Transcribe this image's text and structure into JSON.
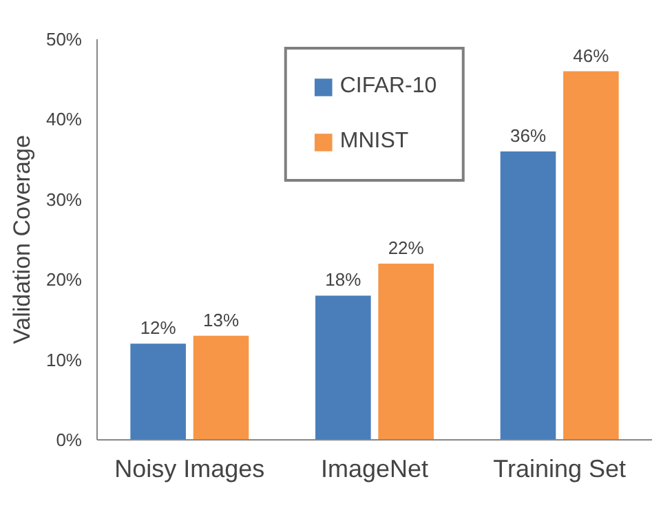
{
  "chart_data": {
    "type": "bar",
    "ylabel": "Validation Coverage",
    "categories": [
      "Noisy Images",
      "ImageNet",
      "Training Set"
    ],
    "series": [
      {
        "name": "CIFAR-10",
        "color": "#4a7ebb",
        "values": [
          12,
          18,
          36
        ],
        "value_labels": [
          "12%",
          "18%",
          "36%"
        ]
      },
      {
        "name": "MNIST",
        "color": "#f79646",
        "values": [
          13,
          22,
          46
        ],
        "value_labels": [
          "13%",
          "22%",
          "46%"
        ]
      }
    ],
    "ylim": [
      0,
      50
    ],
    "yticks": [
      {
        "value": 0,
        "label": "0%"
      },
      {
        "value": 10,
        "label": "10%"
      },
      {
        "value": 20,
        "label": "20%"
      },
      {
        "value": 30,
        "label": "30%"
      },
      {
        "value": 40,
        "label": "40%"
      },
      {
        "value": 50,
        "label": "50%"
      }
    ],
    "grid": false,
    "legend": "top"
  }
}
